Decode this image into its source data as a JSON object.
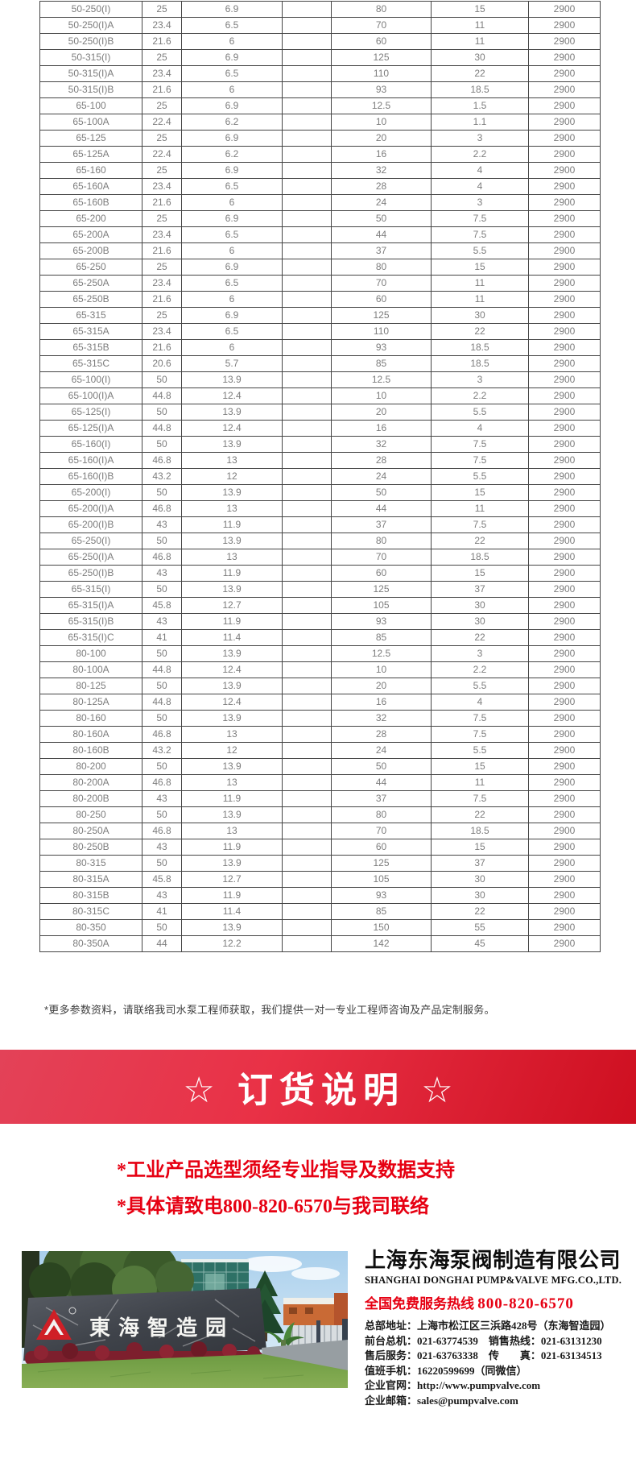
{
  "table": {
    "rows": [
      [
        "50-250(I)",
        "25",
        "6.9",
        "80",
        "15",
        "2900"
      ],
      [
        "50-250(I)A",
        "23.4",
        "6.5",
        "70",
        "11",
        "2900"
      ],
      [
        "50-250(I)B",
        "21.6",
        "6",
        "60",
        "11",
        "2900"
      ],
      [
        "50-315(I)",
        "25",
        "6.9",
        "125",
        "30",
        "2900"
      ],
      [
        "50-315(I)A",
        "23.4",
        "6.5",
        "110",
        "22",
        "2900"
      ],
      [
        "50-315(I)B",
        "21.6",
        "6",
        "93",
        "18.5",
        "2900"
      ],
      [
        "65-100",
        "25",
        "6.9",
        "12.5",
        "1.5",
        "2900"
      ],
      [
        "65-100A",
        "22.4",
        "6.2",
        "10",
        "1.1",
        "2900"
      ],
      [
        "65-125",
        "25",
        "6.9",
        "20",
        "3",
        "2900"
      ],
      [
        "65-125A",
        "22.4",
        "6.2",
        "16",
        "2.2",
        "2900"
      ],
      [
        "65-160",
        "25",
        "6.9",
        "32",
        "4",
        "2900"
      ],
      [
        "65-160A",
        "23.4",
        "6.5",
        "28",
        "4",
        "2900"
      ],
      [
        "65-160B",
        "21.6",
        "6",
        "24",
        "3",
        "2900"
      ],
      [
        "65-200",
        "25",
        "6.9",
        "50",
        "7.5",
        "2900"
      ],
      [
        "65-200A",
        "23.4",
        "6.5",
        "44",
        "7.5",
        "2900"
      ],
      [
        "65-200B",
        "21.6",
        "6",
        "37",
        "5.5",
        "2900"
      ],
      [
        "65-250",
        "25",
        "6.9",
        "80",
        "15",
        "2900"
      ],
      [
        "65-250A",
        "23.4",
        "6.5",
        "70",
        "11",
        "2900"
      ],
      [
        "65-250B",
        "21.6",
        "6",
        "60",
        "11",
        "2900"
      ],
      [
        "65-315",
        "25",
        "6.9",
        "125",
        "30",
        "2900"
      ],
      [
        "65-315A",
        "23.4",
        "6.5",
        "110",
        "22",
        "2900"
      ],
      [
        "65-315B",
        "21.6",
        "6",
        "93",
        "18.5",
        "2900"
      ],
      [
        "65-315C",
        "20.6",
        "5.7",
        "85",
        "18.5",
        "2900"
      ],
      [
        "65-100(I)",
        "50",
        "13.9",
        "12.5",
        "3",
        "2900"
      ],
      [
        "65-100(I)A",
        "44.8",
        "12.4",
        "10",
        "2.2",
        "2900"
      ],
      [
        "65-125(I)",
        "50",
        "13.9",
        "20",
        "5.5",
        "2900"
      ],
      [
        "65-125(I)A",
        "44.8",
        "12.4",
        "16",
        "4",
        "2900"
      ],
      [
        "65-160(I)",
        "50",
        "13.9",
        "32",
        "7.5",
        "2900"
      ],
      [
        "65-160(I)A",
        "46.8",
        "13",
        "28",
        "7.5",
        "2900"
      ],
      [
        "65-160(I)B",
        "43.2",
        "12",
        "24",
        "5.5",
        "2900"
      ],
      [
        "65-200(I)",
        "50",
        "13.9",
        "50",
        "15",
        "2900"
      ],
      [
        "65-200(I)A",
        "46.8",
        "13",
        "44",
        "11",
        "2900"
      ],
      [
        "65-200(I)B",
        "43",
        "11.9",
        "37",
        "7.5",
        "2900"
      ],
      [
        "65-250(I)",
        "50",
        "13.9",
        "80",
        "22",
        "2900"
      ],
      [
        "65-250(I)A",
        "46.8",
        "13",
        "70",
        "18.5",
        "2900"
      ],
      [
        "65-250(I)B",
        "43",
        "11.9",
        "60",
        "15",
        "2900"
      ],
      [
        "65-315(I)",
        "50",
        "13.9",
        "125",
        "37",
        "2900"
      ],
      [
        "65-315(I)A",
        "45.8",
        "12.7",
        "105",
        "30",
        "2900"
      ],
      [
        "65-315(I)B",
        "43",
        "11.9",
        "93",
        "30",
        "2900"
      ],
      [
        "65-315(I)C",
        "41",
        "11.4",
        "85",
        "22",
        "2900"
      ],
      [
        "80-100",
        "50",
        "13.9",
        "12.5",
        "3",
        "2900"
      ],
      [
        "80-100A",
        "44.8",
        "12.4",
        "10",
        "2.2",
        "2900"
      ],
      [
        "80-125",
        "50",
        "13.9",
        "20",
        "5.5",
        "2900"
      ],
      [
        "80-125A",
        "44.8",
        "12.4",
        "16",
        "4",
        "2900"
      ],
      [
        "80-160",
        "50",
        "13.9",
        "32",
        "7.5",
        "2900"
      ],
      [
        "80-160A",
        "46.8",
        "13",
        "28",
        "7.5",
        "2900"
      ],
      [
        "80-160B",
        "43.2",
        "12",
        "24",
        "5.5",
        "2900"
      ],
      [
        "80-200",
        "50",
        "13.9",
        "50",
        "15",
        "2900"
      ],
      [
        "80-200A",
        "46.8",
        "13",
        "44",
        "11",
        "2900"
      ],
      [
        "80-200B",
        "43",
        "11.9",
        "37",
        "7.5",
        "2900"
      ],
      [
        "80-250",
        "50",
        "13.9",
        "80",
        "22",
        "2900"
      ],
      [
        "80-250A",
        "46.8",
        "13",
        "70",
        "18.5",
        "2900"
      ],
      [
        "80-250B",
        "43",
        "11.9",
        "60",
        "15",
        "2900"
      ],
      [
        "80-315",
        "50",
        "13.9",
        "125",
        "37",
        "2900"
      ],
      [
        "80-315A",
        "45.8",
        "12.7",
        "105",
        "30",
        "2900"
      ],
      [
        "80-315B",
        "43",
        "11.9",
        "93",
        "30",
        "2900"
      ],
      [
        "80-315C",
        "41",
        "11.4",
        "85",
        "22",
        "2900"
      ],
      [
        "80-350",
        "50",
        "13.9",
        "150",
        "55",
        "2900"
      ],
      [
        "80-350A",
        "44",
        "12.2",
        "142",
        "45",
        "2900"
      ]
    ]
  },
  "note": "*更多参数资料，请联络我司水泵工程师获取，我们提供一对一专业工程师咨询及产品定制服务。",
  "banner": {
    "title": "☆ 订货说明 ☆"
  },
  "notices": [
    "*工业产品选型须经专业指导及数据支持",
    "*具体请致电800-820-6570与我司联络"
  ],
  "footer": {
    "photo_sign": "東海智造园",
    "company_name_cn": "上海东海泵阀制造有限公司",
    "company_name_en": "SHANGHAI DONGHAI PUMP&VALVE MFG.CO.,LTD.",
    "hotline_label": "全国免费服务热线",
    "hotline_number": "800-820-6570",
    "contacts": [
      "总部地址：上海市松江区三浜路428号（东海智造园）",
      "前台总机：021-63774539　销售热线：021-63131230",
      "售后服务：021-63763338　传　　真：021-63134513",
      "值班手机：16220599699（同微信）",
      "企业官网：http://www.pumpvalve.com",
      "企业邮箱：sales@pumpvalve.com"
    ]
  },
  "colors": {
    "accent_red": "#e60012",
    "banner_red_start": "#e34258",
    "banner_red_end": "#ce0f20",
    "table_text": "#7d7d7d",
    "table_border": "#454545"
  }
}
